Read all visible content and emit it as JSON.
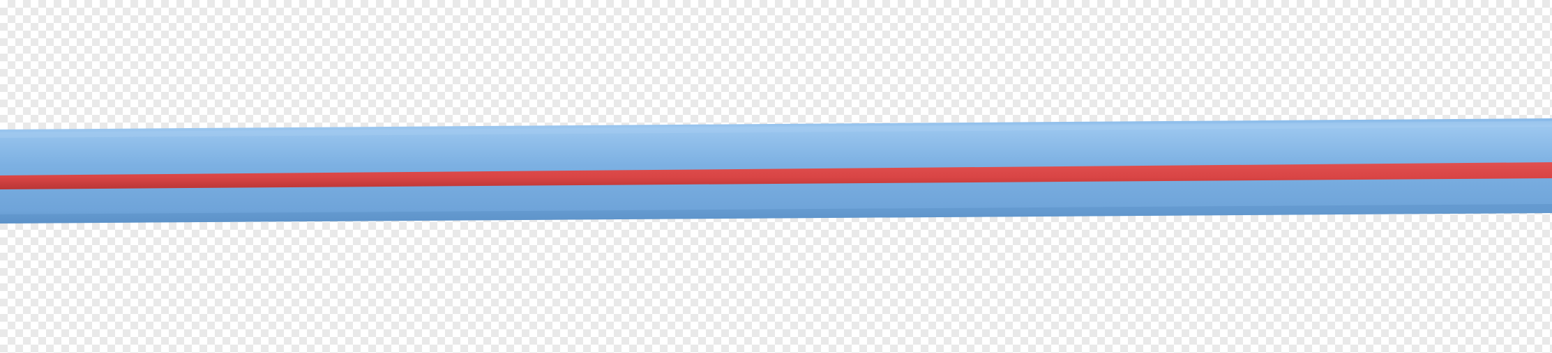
{
  "scene": {
    "subject": "blue-tube-with-red-stripe-icon",
    "background": "transparency-checkerboard",
    "colors": {
      "checker_light": "#ffffff",
      "checker_dark": "#e9e9e9",
      "tube_top": "#86b8e8",
      "tube_mid": "#7cb0e2",
      "tube_bottom": "#6fa4d9",
      "tube_edge_top": "#9cc7ef",
      "tube_edge_bottom": "#5f95cc",
      "stripe": "#d94545",
      "stripe_dark": "#b93636"
    }
  }
}
